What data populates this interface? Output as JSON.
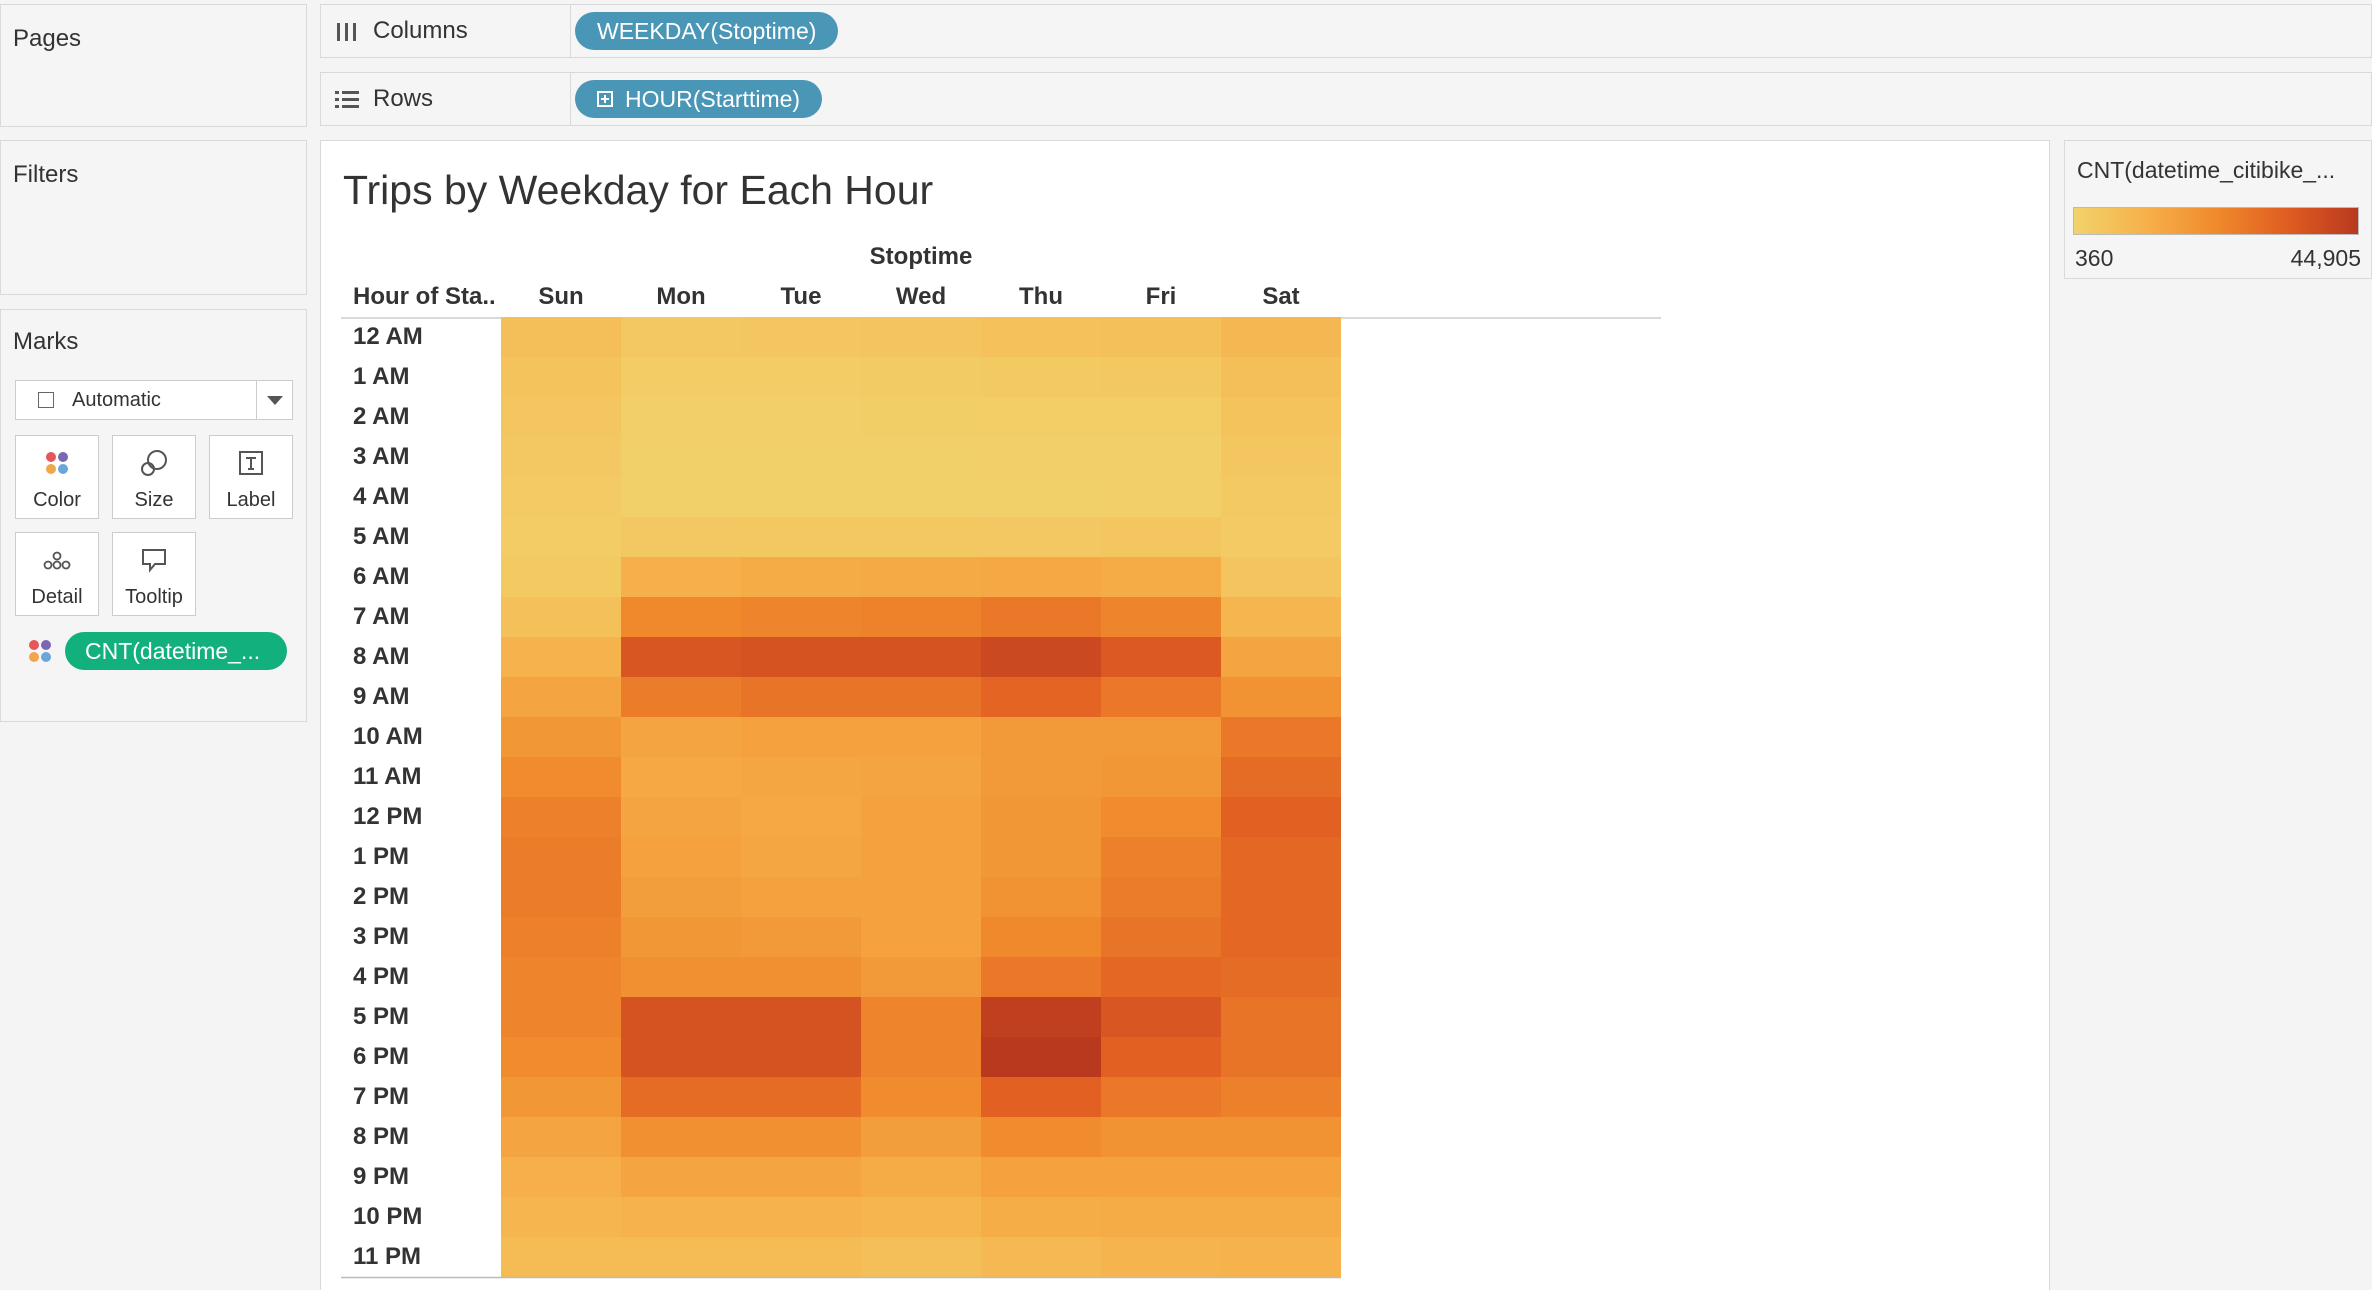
{
  "pages": {
    "title": "Pages"
  },
  "filters": {
    "title": "Filters"
  },
  "marks": {
    "title": "Marks",
    "mark_type": "Automatic",
    "buttons": [
      {
        "label": "Color",
        "icon": "color-dots-icon"
      },
      {
        "label": "Size",
        "icon": "size-circles-icon"
      },
      {
        "label": "Label",
        "icon": "label-t-icon"
      },
      {
        "label": "Detail",
        "icon": "detail-dots-icon"
      },
      {
        "label": "Tooltip",
        "icon": "tooltip-bubble-icon"
      }
    ],
    "color_field": "CNT(datetime_..."
  },
  "shelves": {
    "columns_label": "Columns",
    "columns_pill": "WEEKDAY(Stoptime)",
    "rows_label": "Rows",
    "rows_pill": "HOUR(Starttime)"
  },
  "view": {
    "title": "Trips by Weekday for Each Hour",
    "column_field": "Stoptime",
    "row_field": "Hour of Sta.."
  },
  "legend": {
    "title": "CNT(datetime_citibike_...",
    "min_label": "360",
    "max_label": "44,905",
    "colors": [
      "#f2d26b",
      "#f6b14b",
      "#f08a2c",
      "#e05d21",
      "#b9391f"
    ]
  },
  "chart_data": {
    "type": "heatmap",
    "title": "Trips by Weekday for Each Hour",
    "xlabel": "Stoptime",
    "ylabel": "Hour of Sta..",
    "columns": [
      "Sun",
      "Mon",
      "Tue",
      "Wed",
      "Thu",
      "Fri",
      "Sat"
    ],
    "rows": [
      "12 AM",
      "1 AM",
      "2 AM",
      "3 AM",
      "4 AM",
      "5 AM",
      "6 AM",
      "7 AM",
      "8 AM",
      "9 AM",
      "10 AM",
      "11 AM",
      "12 PM",
      "1 PM",
      "2 PM",
      "3 PM",
      "4 PM",
      "5 PM",
      "6 PM",
      "7 PM",
      "8 PM",
      "9 PM",
      "10 PM",
      "11 PM"
    ],
    "color_min": 360,
    "color_max": 44905,
    "values": [
      [
        7000,
        4000,
        4500,
        5000,
        6000,
        6500,
        9500
      ],
      [
        5500,
        2500,
        2500,
        2800,
        3500,
        3800,
        7000
      ],
      [
        4500,
        1500,
        1500,
        1600,
        2000,
        2200,
        5500
      ],
      [
        4000,
        1200,
        1100,
        1100,
        1300,
        1500,
        4500
      ],
      [
        3000,
        1200,
        1000,
        1000,
        1100,
        1300,
        3500
      ],
      [
        2500,
        4000,
        3800,
        3900,
        4000,
        4500,
        3000
      ],
      [
        3500,
        12000,
        13000,
        13500,
        14000,
        13000,
        5000
      ],
      [
        6500,
        23000,
        24000,
        24500,
        27000,
        24000,
        10000
      ],
      [
        11000,
        36000,
        37000,
        37000,
        40000,
        35000,
        15000
      ],
      [
        15000,
        26000,
        28000,
        28000,
        32000,
        27000,
        20000
      ],
      [
        19000,
        15000,
        16000,
        16000,
        18000,
        18000,
        27000
      ],
      [
        22000,
        14000,
        14500,
        15000,
        18000,
        19000,
        30000
      ],
      [
        25000,
        15000,
        14000,
        16000,
        19000,
        22000,
        33000
      ],
      [
        26000,
        16000,
        14500,
        16000,
        19000,
        25000,
        31000
      ],
      [
        26000,
        17000,
        16000,
        16000,
        20000,
        26000,
        31000
      ],
      [
        25000,
        19000,
        18000,
        16000,
        23000,
        28000,
        31000
      ],
      [
        24000,
        21000,
        21000,
        18000,
        27000,
        31000,
        30000
      ],
      [
        24000,
        37000,
        37000,
        24000,
        43000,
        36000,
        28000
      ],
      [
        22000,
        37000,
        37000,
        24000,
        44905,
        33000,
        28000
      ],
      [
        19000,
        30000,
        30000,
        22000,
        33000,
        27000,
        25000
      ],
      [
        15000,
        21000,
        21000,
        17000,
        22000,
        20000,
        20000
      ],
      [
        12000,
        15000,
        15000,
        13000,
        16000,
        16000,
        16000
      ],
      [
        10000,
        11000,
        11000,
        10000,
        12500,
        13000,
        13000
      ],
      [
        8000,
        8000,
        8000,
        7000,
        9000,
        10500,
        11000
      ]
    ]
  }
}
